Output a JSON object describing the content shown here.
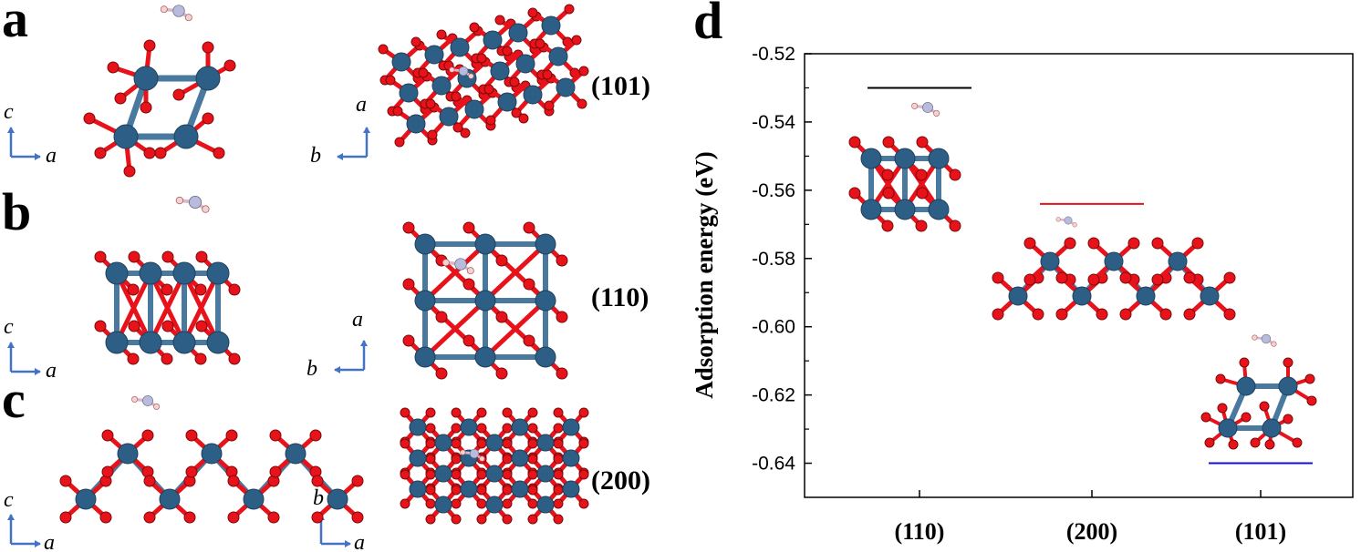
{
  "panels": {
    "a": {
      "letter": "a",
      "facet": "(101)",
      "left_axes": {
        "v": "c",
        "h": "a"
      },
      "right_axes": {
        "v": "a",
        "h": "b"
      }
    },
    "b": {
      "letter": "b",
      "facet": "(110)",
      "left_axes": {
        "v": "c",
        "h": "a"
      },
      "right_axes": {
        "v": "a",
        "h": "b"
      }
    },
    "c": {
      "letter": "c",
      "facet": "(200)",
      "left_axes": {
        "v": "c",
        "h": "a"
      },
      "right_axes": {
        "v": "b",
        "h": "a"
      }
    },
    "d": {
      "letter": "d"
    }
  },
  "colors": {
    "metal": "#2d5f86",
    "oxygen": "#e8121b",
    "bond_metal": "#4a79a0",
    "adsorbate_n": "#b8bbdd",
    "adsorbate_h": "#f2d2d2",
    "axis_arrow": "#4472c4"
  },
  "chart_data": {
    "type": "bar",
    "ylabel": "Adsorption energy (eV)",
    "xlabel": "",
    "ylim": [
      -0.65,
      -0.52
    ],
    "yticks": [
      -0.52,
      -0.54,
      -0.56,
      -0.58,
      -0.6,
      -0.62,
      -0.64
    ],
    "ytick_labels": [
      "-0.52",
      "-0.54",
      "-0.56",
      "-0.58",
      "-0.60",
      "-0.62",
      "-0.64"
    ],
    "categories": [
      "(110)",
      "(200)",
      "(101)"
    ],
    "values": [
      -0.53,
      -0.564,
      -0.64
    ],
    "level_colors": [
      "#000000",
      "#e8121b",
      "#1010d0"
    ]
  }
}
